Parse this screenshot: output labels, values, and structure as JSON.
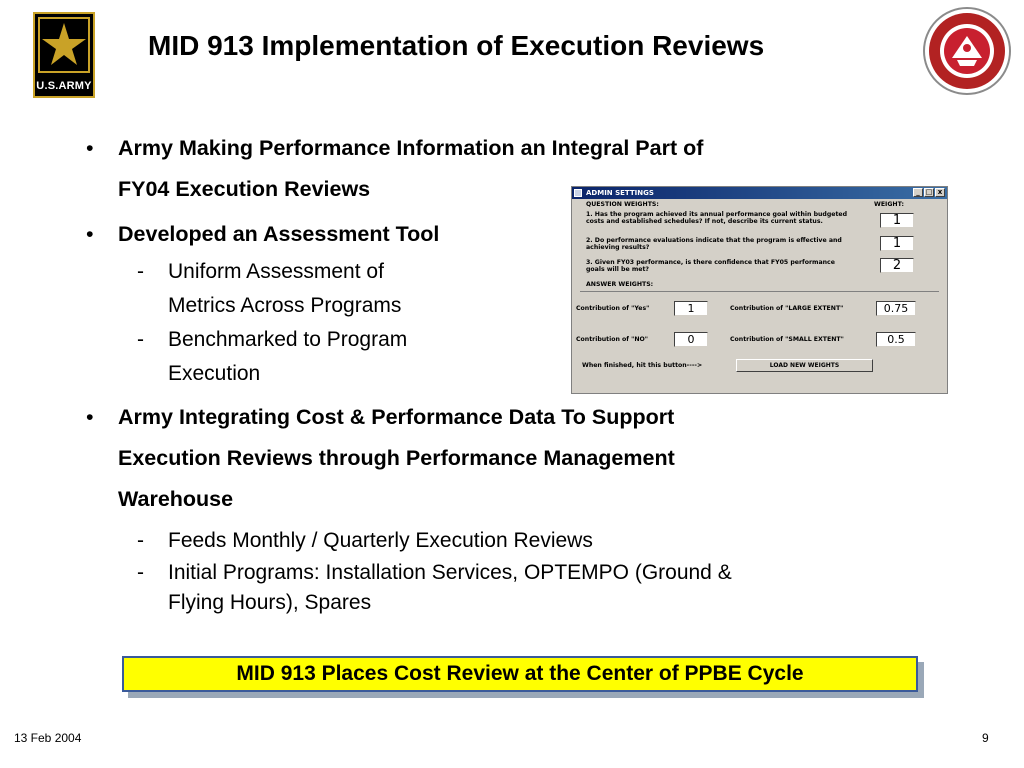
{
  "slide": {
    "title": "MID 913 Implementation of Execution Reviews",
    "army_logo_text": "U.S.ARMY",
    "bullets": {
      "b1_line1": "Army Making Performance Information an Integral Part of",
      "b1_line2": "FY04 Execution Reviews",
      "b2": "Developed an Assessment Tool",
      "b2_sub1_line1": "Uniform Assessment of",
      "b2_sub1_line2": "Metrics Across Programs",
      "b2_sub2_line1": "Benchmarked to Program",
      "b2_sub2_line2": "Execution",
      "b3_line1": "Army Integrating Cost & Performance Data To Support",
      "b3_line2": "Execution Reviews through Performance Management",
      "b3_line3": "Warehouse",
      "b3_sub1": "Feeds Monthly / Quarterly Execution Reviews",
      "b3_sub2_line1": "Initial Programs:  Installation Services, OPTEMPO (Ground &",
      "b3_sub2_line2": "Flying Hours), Spares",
      "dash": "-"
    },
    "banner": "MID 913 Places Cost Review at the Center of PPBE Cycle",
    "footer_date": "13 Feb 2004",
    "page_number": "9"
  },
  "admin_window": {
    "title": "ADMIN SETTINGS",
    "minimize": "_",
    "maximize": "□",
    "close": "x",
    "question_weights_label": "QUESTION WEIGHTS:",
    "weight_label": "WEIGHT:",
    "q1": "1.  Has the program achieved its annual performance goal within budgeted costs and established schedules?  If not, describe its current status.",
    "q1_weight": "1",
    "q2": "2.  Do performance evaluations indicate that the program is effective and achieving results?",
    "q2_weight": "1",
    "q3": "3.  Given FY03 performance, is there confidence that FY05 performance goals will be met?",
    "q3_weight": "2",
    "answer_weights_label": "ANSWER WEIGHTS:",
    "yes_label": "Contribution of \"Yes\"",
    "yes_value": "1",
    "large_label": "Contribution of \"LARGE EXTENT\"",
    "large_value": "0.75",
    "no_label": "Contribution of \"NO\"",
    "no_value": "0",
    "small_label": "Contribution of \"SMALL EXTENT\"",
    "small_value": "0.5",
    "finished_label": "When finished, hit this button---->",
    "load_button": "LOAD NEW WEIGHTS"
  },
  "colors": {
    "banner_fill": "#ffff00",
    "banner_border": "#3a5a9a",
    "window_face": "#d4d0c8",
    "titlebar": "#0a246a",
    "army_gold": "#c9a227"
  }
}
